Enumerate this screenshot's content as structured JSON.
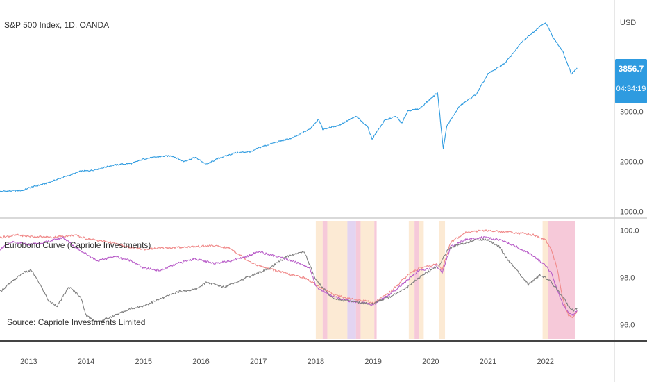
{
  "colors": {
    "spx": "#2e9be0",
    "pink": "#f08a8a",
    "purple": "#b85cc8",
    "gray": "#7f7f7f",
    "price_badge": "#2e9be0",
    "shade_yellow": "#fbe3c6",
    "shade_pink": "#f3b7cc",
    "shade_purple": "#d9c6ec"
  },
  "chart_data": [
    {
      "type": "line",
      "title": "S&P 500 Index, 1D, OANDA",
      "y_unit_label": "USD",
      "y_ticks": [
        "3000.0",
        "2000.0",
        "1000.0"
      ],
      "y_tick_values": [
        3000,
        2000,
        1000
      ],
      "ylim": [
        950,
        4950
      ],
      "current_price": "3856.7",
      "countdown": "04:34:19",
      "series": [
        {
          "key": "spx",
          "x": [
            2012.5,
            2012.9,
            2013.0,
            2013.3,
            2013.6,
            2013.9,
            2014.1,
            2014.5,
            2014.8,
            2015.0,
            2015.3,
            2015.5,
            2015.7,
            2015.9,
            2016.1,
            2016.3,
            2016.6,
            2016.9,
            2017.0,
            2017.3,
            2017.6,
            2017.9,
            2018.05,
            2018.12,
            2018.4,
            2018.7,
            2018.9,
            2018.98,
            2019.2,
            2019.4,
            2019.5,
            2019.6,
            2019.8,
            2020.0,
            2020.12,
            2020.22,
            2020.28,
            2020.5,
            2020.8,
            2021.0,
            2021.3,
            2021.6,
            2021.9,
            2022.0,
            2022.15,
            2022.3,
            2022.45,
            2022.55
          ],
          "y": [
            1400,
            1420,
            1470,
            1560,
            1680,
            1800,
            1820,
            1930,
            1960,
            2050,
            2100,
            2110,
            2000,
            2080,
            1940,
            2060,
            2170,
            2200,
            2270,
            2380,
            2470,
            2650,
            2850,
            2640,
            2720,
            2900,
            2700,
            2450,
            2820,
            2900,
            2760,
            3010,
            3050,
            3250,
            3380,
            2250,
            2700,
            3100,
            3350,
            3750,
            3970,
            4400,
            4700,
            4780,
            4450,
            4200,
            3750,
            3870
          ]
        }
      ]
    },
    {
      "type": "line",
      "title": "Eurobond Curve (Capriole Investments)",
      "annotation": "Source: Capriole Investments Limited",
      "y_ticks": [
        "100.0",
        "98.0",
        "96.0"
      ],
      "y_tick_values": [
        100,
        98,
        96
      ],
      "ylim": [
        95.4,
        100.4
      ],
      "shaded_bands": [
        {
          "from": 2018.0,
          "to": 2018.12,
          "shade": "shade_yellow"
        },
        {
          "from": 2018.12,
          "to": 2018.2,
          "shade": "shade_pink"
        },
        {
          "from": 2018.2,
          "to": 2018.55,
          "shade": "shade_yellow"
        },
        {
          "from": 2018.55,
          "to": 2018.7,
          "shade": "shade_purple"
        },
        {
          "from": 2018.7,
          "to": 2018.78,
          "shade": "shade_pink"
        },
        {
          "from": 2018.78,
          "to": 2019.02,
          "shade": "shade_yellow"
        },
        {
          "from": 2019.02,
          "to": 2019.06,
          "shade": "shade_pink"
        },
        {
          "from": 2019.62,
          "to": 2019.72,
          "shade": "shade_yellow"
        },
        {
          "from": 2019.72,
          "to": 2019.8,
          "shade": "shade_pink"
        },
        {
          "from": 2019.8,
          "to": 2019.88,
          "shade": "shade_yellow"
        },
        {
          "from": 2020.15,
          "to": 2020.25,
          "shade": "shade_yellow"
        },
        {
          "from": 2021.95,
          "to": 2022.05,
          "shade": "shade_yellow"
        },
        {
          "from": 2022.05,
          "to": 2022.52,
          "shade": "shade_pink"
        }
      ],
      "series": [
        {
          "key": "pink",
          "x": [
            2012.5,
            2012.8,
            2013.0,
            2013.4,
            2013.8,
            2014.0,
            2014.4,
            2014.7,
            2015.0,
            2015.4,
            2015.8,
            2016.2,
            2016.5,
            2016.8,
            2017.0,
            2017.3,
            2017.6,
            2017.8,
            2018.0,
            2018.3,
            2018.6,
            2018.9,
            2019.0,
            2019.3,
            2019.6,
            2019.8,
            2020.0,
            2020.1,
            2020.2,
            2020.35,
            2020.6,
            2020.9,
            2021.2,
            2021.5,
            2021.8,
            2022.0,
            2022.1,
            2022.2,
            2022.3,
            2022.4,
            2022.48,
            2022.55
          ],
          "y": [
            99.7,
            99.8,
            99.75,
            99.7,
            99.8,
            99.65,
            99.5,
            99.3,
            99.2,
            99.25,
            99.3,
            99.35,
            99.25,
            98.75,
            98.5,
            98.3,
            98.1,
            98.0,
            97.7,
            97.3,
            97.1,
            97.0,
            96.9,
            97.4,
            98.1,
            98.4,
            98.5,
            98.6,
            98.3,
            99.5,
            99.9,
            100.0,
            99.95,
            99.9,
            99.8,
            99.6,
            99.2,
            98.4,
            97.1,
            96.4,
            96.3,
            96.6
          ]
        },
        {
          "key": "purple",
          "x": [
            2012.5,
            2012.7,
            2013.0,
            2013.3,
            2013.6,
            2013.8,
            2014.0,
            2014.2,
            2014.5,
            2014.8,
            2015.0,
            2015.3,
            2015.6,
            2015.9,
            2016.2,
            2016.5,
            2016.8,
            2017.0,
            2017.3,
            2017.6,
            2017.9,
            2018.0,
            2018.3,
            2018.6,
            2018.9,
            2019.0,
            2019.3,
            2019.6,
            2019.8,
            2020.0,
            2020.1,
            2020.2,
            2020.35,
            2020.6,
            2020.9,
            2021.2,
            2021.5,
            2021.8,
            2022.0,
            2022.1,
            2022.2,
            2022.3,
            2022.4,
            2022.48,
            2022.55
          ],
          "y": [
            99.2,
            99.5,
            99.4,
            99.5,
            99.7,
            99.3,
            99.0,
            98.7,
            98.9,
            98.7,
            98.4,
            98.3,
            98.6,
            98.8,
            98.6,
            98.7,
            98.9,
            99.1,
            98.9,
            98.7,
            98.4,
            97.6,
            97.2,
            97.0,
            96.9,
            96.85,
            97.3,
            97.9,
            98.3,
            98.4,
            98.5,
            98.2,
            99.3,
            99.6,
            99.7,
            99.6,
            99.3,
            98.9,
            98.5,
            98.2,
            97.5,
            96.9,
            96.5,
            96.4,
            96.6
          ]
        },
        {
          "key": "gray",
          "x": [
            2012.5,
            2012.7,
            2012.9,
            2013.05,
            2013.2,
            2013.35,
            2013.5,
            2013.7,
            2013.9,
            2014.0,
            2014.2,
            2014.5,
            2014.8,
            2015.0,
            2015.3,
            2015.6,
            2015.9,
            2016.1,
            2016.4,
            2016.8,
            2017.0,
            2017.2,
            2017.5,
            2017.8,
            2018.0,
            2018.3,
            2018.6,
            2018.9,
            2019.0,
            2019.3,
            2019.6,
            2019.8,
            2020.0,
            2020.15,
            2020.3,
            2020.5,
            2020.8,
            2021.0,
            2021.2,
            2021.3,
            2021.5,
            2021.7,
            2021.9,
            2022.0,
            2022.1,
            2022.2,
            2022.3,
            2022.4,
            2022.48,
            2022.55
          ],
          "y": [
            97.4,
            97.8,
            98.2,
            98.3,
            97.7,
            97.0,
            96.8,
            97.6,
            97.2,
            96.4,
            96.1,
            96.4,
            96.7,
            96.8,
            97.1,
            97.4,
            97.5,
            97.8,
            97.6,
            98.0,
            98.2,
            98.4,
            98.9,
            99.1,
            97.9,
            97.1,
            97.0,
            96.9,
            96.9,
            97.2,
            97.6,
            98.0,
            98.3,
            98.5,
            99.2,
            99.4,
            99.6,
            99.6,
            99.3,
            98.9,
            98.3,
            97.7,
            98.1,
            98.0,
            97.8,
            97.5,
            97.2,
            96.8,
            96.6,
            96.7
          ]
        }
      ]
    }
  ],
  "x_axis": {
    "xlim": [
      2012.5,
      2023.2
    ],
    "ticks": [
      2013,
      2014,
      2015,
      2016,
      2017,
      2018,
      2019,
      2020,
      2021,
      2022
    ],
    "tick_labels": [
      "2013",
      "2014",
      "2015",
      "2016",
      "2017",
      "2018",
      "2019",
      "2020",
      "2021",
      "2022"
    ]
  }
}
